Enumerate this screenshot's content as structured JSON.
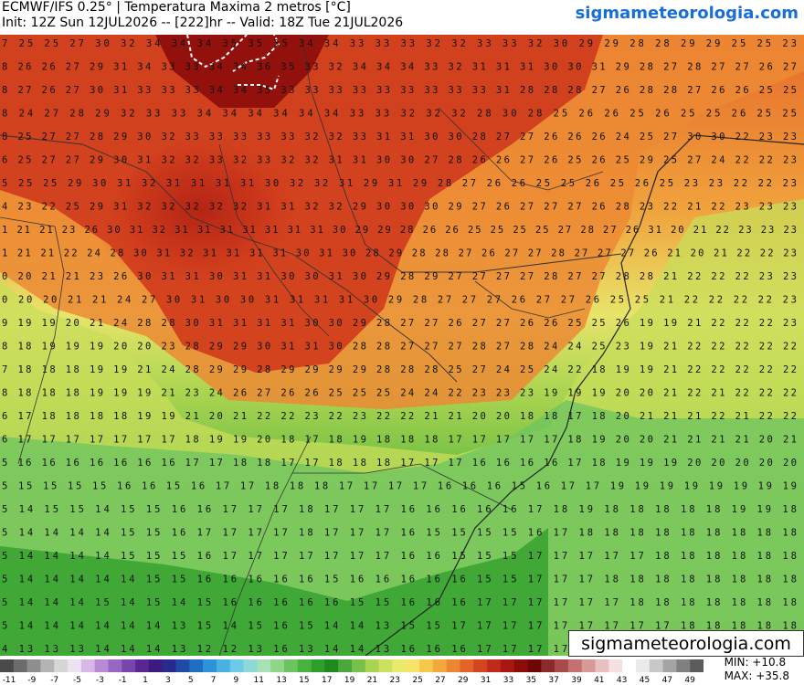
{
  "header": {
    "line1": "ECMWF/IFS 0.25° | Temperatura Maxima 2 metros [°C]",
    "line2": "Init: 12Z Sun 12JUL2026 -- [222]hr -- Valid: 18Z Tue 21JUL2026",
    "site": "sigmameteorologia.com"
  },
  "watermark": "sigmameteorologia.com",
  "stats": {
    "min": "MIN: +10.8",
    "max": "MAX: +35.8"
  },
  "colorbar": {
    "tick_labels": [
      "-11",
      "-9",
      "-7",
      "-5",
      "-3",
      "-1",
      "1",
      "3",
      "5",
      "7",
      "9",
      "11",
      "13",
      "15",
      "17",
      "19",
      "21",
      "23",
      "25",
      "27",
      "29",
      "31",
      "33",
      "35",
      "37",
      "39",
      "41",
      "43",
      "45",
      "47",
      "49"
    ],
    "colors": [
      "#4a4a4a",
      "#6c6c6c",
      "#8e8e8e",
      "#b4b4b4",
      "#d6d6d6",
      "#ece2f2",
      "#d8b8e8",
      "#b88ad6",
      "#9966c4",
      "#7a44ae",
      "#5a2694",
      "#3c1a7e",
      "#2a2a8e",
      "#1e4aa8",
      "#1e6ec4",
      "#2e92d8",
      "#4ab2e2",
      "#6ccae6",
      "#8ed8d8",
      "#a8e0b8",
      "#8ed68a",
      "#6cc460",
      "#48b23c",
      "#2e9e2a",
      "#1e8a1e",
      "#4aa83a",
      "#78c04a",
      "#a8d450",
      "#cde060",
      "#e8ea6a",
      "#f6e46a",
      "#f6c84a",
      "#f2a83c",
      "#ec8630",
      "#e46428",
      "#d44420",
      "#c02a18",
      "#a81810",
      "#8c0c0a",
      "#6e0606",
      "#8a2a2a",
      "#a84a4a",
      "#c47070",
      "#d89898",
      "#e8c0c0",
      "#f4e0e0",
      "#ffffff",
      "#eaeaea",
      "#c8c8c8",
      "#a4a4a4",
      "#808080",
      "#5c5c5c"
    ]
  },
  "map": {
    "grid_rows": [
      "7 25 25 27 30 32 34 34 34 35 35 35 34 34 33 33 33 32 32 33 33 32 30 29 29 28 28 29 29 25 25 23",
      "8 26 26 27 29 31 34 33 33 34 34 36 35 33 32 34 34 34 33 32 31 31 31 30 30 31 29 28 27 28 27 27 26 27",
      "8 27 26 27 30 31 33 33 33 34 34 35 33 33 33 33 33 33 33 33 33 31 28 28 28 27 26 28 28 27 26 26 25 25",
      "8 24 27 28 29 32 33 33 34 34 34 34 34 34 33 33 32 32 32 28 30 28 25 26 26 25 26 25 25 26 25 25",
      "8 25 27 27 28 29 30 32 33 33 33 33 33 32 32 33 31 31 30 30 28 27 27 26 26 26 24 25 27 30 30 22 23 23",
      "6 25 27 27 29 30 31 32 32 33 32 33 32 32 31 31 30 30 27 28 26 26 27 26 25 26 25 29 25 27 24 22 22 23",
      "5 25 25 29 30 31 32 31 31 31 31 30 32 32 31 29 31 29 28 27 26 26 25 25 26 25 26 25 23 23 22 22 23",
      "4 23 22 25 29 31 32 32 32 32 32 31 31 32 32 29 30 30 30 29 27 26 27 27 27 26 28 23 22 21 22 23 23 23",
      "1 21 21 23 26 30 31 32 31 31 31 31 31 31 31 30 29 29 28 26 26 25 25 25 25 27 28 27 26 31 20 21 22 23 23 23",
      "1 21 21 22 24 28 30 31 32 31 31 31 31 30 31 30 28 29 28 28 27 26 27 27 28 27 27 27 26 21 20 21 22 22 23",
      "0 20 21 21 23 26 30 31 31 30 31 31 30 30 31 30 29 28 29 27 27 27 27 28 27 27 28 28 21 22 22 22 23 23",
      "0 20 20 21 21 24 27 30 31 30 30 31 31 31 31 30 29 28 27 27 27 26 27 27 26 25 25 21 22 22 22 22 23",
      "9 19 19 20 21 24 28 28 30 31 31 31 31 30 30 29 28 27 27 26 27 27 26 26 25 25 26 19 19 21 22 22 22 23",
      "8 18 19 19 19 20 20 23 28 29 29 30 31 31 30 28 28 27 27 27 28 27 28 24 24 25 23 19 21 22 22 22 22 22",
      "7 18 18 18 19 19 21 24 28 29 29 28 29 29 29 29 28 28 28 25 27 24 25 24 22 18 19 19 21 22 22 22 22 22",
      "8 18 18 18 19 19 19 21 23 24 26 27 26 26 25 25 25 24 24 22 23 23 23 19 19 19 20 20 21 22 21 22 22 22",
      "6 17 18 18 18 18 19 19 21 20 21 22 22 23 22 23 22 22 21 21 20 20 18 18 17 18 20 21 21 21 22 21 22 22",
      "6 17 17 17 17 17 17 17 18 19 19 20 18 17 18 19 18 18 18 17 17 17 17 17 18 19 20 20 21 21 21 21 20 21",
      "5 16 16 16 16 16 16 16 17 17 18 18 17 17 18 18 18 17 17 17 16 16 16 16 17 18 19 19 19 20 20 20 20 20",
      "5 15 15 15 15 16 16 15 16 17 17 18 18 18 17 17 17 17 16 16 16 15 16 17 17 19 19 19 19 19 19 19 19",
      "5 14 15 15 14 15 15 16 16 17 17 17 18 17 17 17 16 16 16 16 16 17 18 19 18 18 18 18 18 19 19 18",
      "5 14 14 14 14 15 15 16 17 17 17 17 18 17 17 17 16 15 15 15 15 16 17 18 18 18 18 18 18 18 18 18",
      "5 14 14 14 14 15 15 15 16 17 17 17 17 17 17 17 16 16 15 15 15 17 17 17 17 17 18 18 18 18 18 18",
      "5 14 14 14 14 14 15 15 16 16 16 16 16 15 16 16 16 16 16 15 15 17 17 17 18 18 18 18 18 18 18 18",
      "5 14 14 14 15 14 15 14 15 16 16 16 16 16 15 15 16 16 16 17 17 17 17 17 17 18 18 18 18 18 18 18",
      "5 14 14 14 14 14 14 13 15 14 15 16 15 14 14 13 15 15 17 17 17 17 17 17 17 17 17 18 18 18 18 18",
      "4 13 13 13 14 14 14 13 12 12 13 16 13 14 14 13 16 16 16 17 17 17 17 17 17 17 17 17 17 17 18 17",
      "4 13 13 13 14 14 15 15 15 12 12 11 12 12 12 12 12 12 11 11 16 16 17 17 17 17 17 17 17 17 17 17"
    ]
  }
}
